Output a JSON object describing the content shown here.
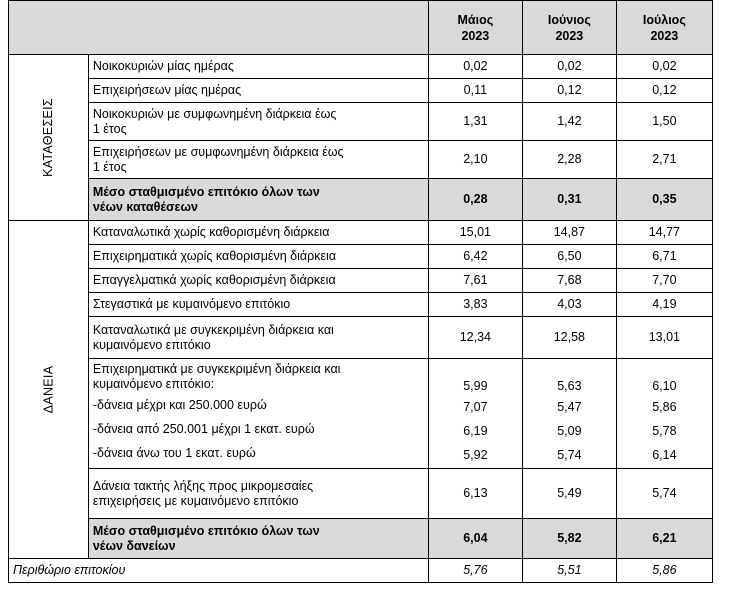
{
  "header": {
    "months": [
      {
        "line1": "Μάιος",
        "line2": "2023"
      },
      {
        "line1": "Ιούνιος",
        "line2": "2023"
      },
      {
        "line1": "Ιούλιος",
        "line2": "2023"
      }
    ]
  },
  "deposits": {
    "group_label": "ΚΑΤΑΘΕΣΕΙΣ",
    "rows": [
      {
        "label": [
          "Νοικοκυριών μίας ημέρας"
        ],
        "values": [
          "0,02",
          "0,02",
          "0,02"
        ]
      },
      {
        "label": [
          "Επιχειρήσεων μίας ημέρας"
        ],
        "values": [
          "0,11",
          "0,12",
          "0,12"
        ]
      },
      {
        "label": [
          "Νοικοκυριών με συμφωνημένη διάρκεια έως",
          "1 έτος"
        ],
        "values": [
          "1,31",
          "1,42",
          "1,50"
        ]
      },
      {
        "label": [
          "Επιχειρήσεων με συμφωνημένη διάρκεια έως",
          "1 έτος"
        ],
        "values": [
          "2,10",
          "2,28",
          "2,71"
        ]
      }
    ],
    "total": {
      "label": [
        "Μέσο σταθμισμένο επιτόκιο όλων των",
        "νέων καταθέσεων"
      ],
      "values": [
        "0,28",
        "0,31",
        "0,35"
      ]
    }
  },
  "loans": {
    "group_label": "ΔΑΝΕΙΑ",
    "rows": [
      {
        "label": [
          "Καταναλωτικά χωρίς καθορισμένη διάρκεια"
        ],
        "values": [
          "15,01",
          "14,87",
          "14,77"
        ]
      },
      {
        "label": [
          "Επιχειρηματικά χωρίς καθορισμένη διάρκεια"
        ],
        "values": [
          "6,42",
          "6,50",
          "6,71"
        ]
      },
      {
        "label": [
          "Επαγγελματικά χωρίς καθορισμένη διάρκεια"
        ],
        "values": [
          "7,61",
          "7,68",
          "7,70"
        ]
      },
      {
        "label": [
          "Στεγαστικά με κυμαινόμενο επιτόκιο"
        ],
        "values": [
          "3,83",
          "4,03",
          "4,19"
        ]
      },
      {
        "label": [
          "Καταναλωτικά με συγκεκριμένη διάρκεια και",
          "κυμαινόμενο επιτόκιο"
        ],
        "values": [
          "12,34",
          "12,58",
          "13,01"
        ]
      }
    ],
    "business": {
      "label": [
        "Επιχειρηματικά με συγκεκριμένη διάρκεια και",
        "κυμαινόμενο επιτόκιο:"
      ],
      "values": [
        "5,99",
        "5,63",
        "6,10"
      ],
      "sub_rows": [
        {
          "label": "-δάνεια μέχρι και 250.000  ευρώ",
          "values": [
            "7,07",
            "5,47",
            "5,86"
          ]
        },
        {
          "label": "-δάνεια από 250.001  μέχρι 1 εκατ. ευρώ",
          "values": [
            "6,19",
            "5,09",
            "5,78"
          ]
        },
        {
          "label": "-δάνεια άνω του 1 εκατ. ευρώ",
          "values": [
            "5,92",
            "5,74",
            "6,14"
          ]
        }
      ]
    },
    "sme_row": {
      "label": [
        "Δάνεια τακτής λήξης προς μικρομεσαίες",
        "επιχειρήσεις με κυμαινόμενο επιτόκιο"
      ],
      "values": [
        "6,13",
        "5,49",
        "5,74"
      ]
    },
    "total": {
      "label": [
        "Μέσο σταθμισμένο επιτόκιο όλων των",
        "νέων δανείων"
      ],
      "values": [
        "6,04",
        "5,82",
        "6,21"
      ]
    }
  },
  "footer": {
    "label": "Περιθώριο επιτοκίου",
    "values": [
      "5,76",
      "5,51",
      "5,86"
    ]
  }
}
